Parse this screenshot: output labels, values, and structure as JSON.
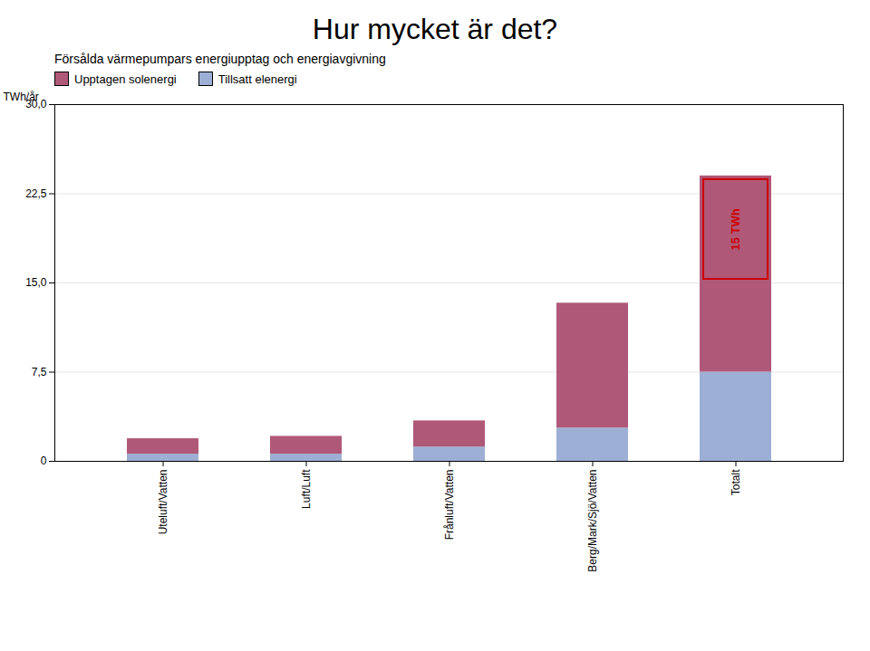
{
  "chart_data": {
    "type": "bar",
    "title": "Hur mycket är det?",
    "subtitle": "Försålda värmepumpars energiupptag och energiavgivning",
    "ylabel": "TWh/år",
    "categories": [
      "Uteluft/Vatten",
      "Luft/Luft",
      "Frånluft/Vatten",
      "Berg/Mark/Sjö/Vatten",
      "Totalt"
    ],
    "series": [
      {
        "name": "Tillsatt elenergi",
        "color": "#9dafd4",
        "values": [
          0.6,
          0.6,
          1.2,
          2.8,
          7.5
        ]
      },
      {
        "name": "Upptagen solenergi",
        "color": "#b05878",
        "values": [
          1.3,
          1.5,
          2.2,
          10.5,
          16.5
        ]
      }
    ],
    "stacked": true,
    "ylim": [
      0,
      30
    ],
    "yticks": [
      0,
      {
        "value": 7.5,
        "label": "7,5"
      },
      {
        "value": 15.0,
        "label": "15,0"
      },
      {
        "value": 22.5,
        "label": "22,5"
      },
      {
        "value": 30.0,
        "label": "30,0"
      }
    ],
    "grid": true,
    "legend": "top",
    "annotations": [
      {
        "text": "15 TWh",
        "category": "Totalt",
        "y_range": [
          15.0,
          24.0
        ],
        "color": "#cc0000"
      }
    ]
  }
}
